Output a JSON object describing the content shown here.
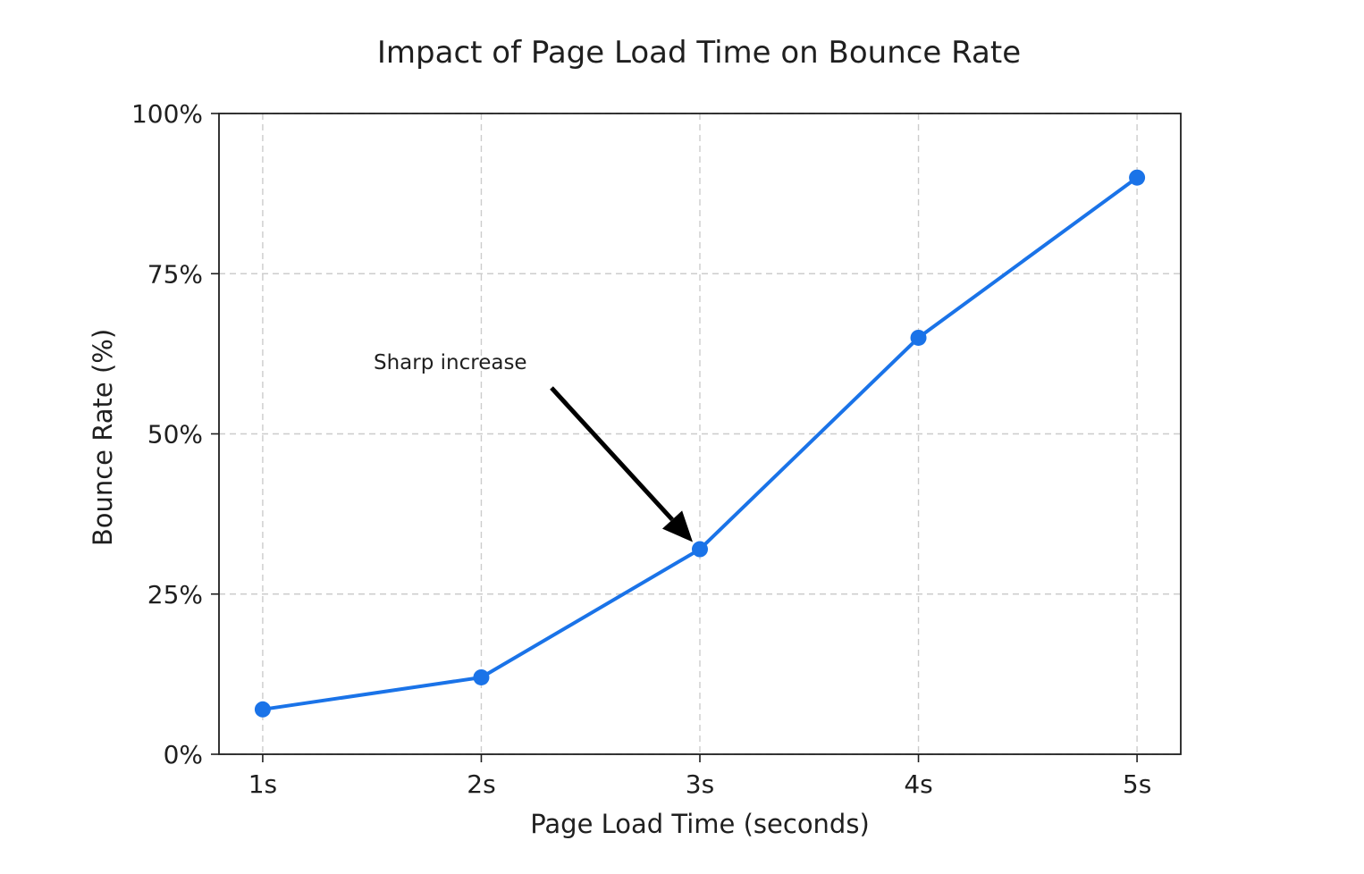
{
  "chart_data": {
    "type": "line",
    "title": "Impact of Page Load Time on Bounce Rate",
    "xlabel": "Page Load Time (seconds)",
    "ylabel": "Bounce Rate (%)",
    "categories": [
      "1s",
      "2s",
      "3s",
      "4s",
      "5s"
    ],
    "x": [
      1,
      2,
      3,
      4,
      5
    ],
    "series": [
      {
        "values": [
          7,
          12,
          32,
          65,
          90
        ],
        "color": "#1a73e8",
        "marker": "circle"
      }
    ],
    "ylim": [
      0,
      100
    ],
    "yticks": [
      0,
      25,
      50,
      75,
      100
    ],
    "ytick_labels": [
      "0%",
      "25%",
      "50%",
      "75%",
      "100%"
    ],
    "grid": true,
    "annotations": [
      {
        "text": "Sharp increase",
        "x": 3,
        "y": 32,
        "arrow": true,
        "arrow_color": "#000000"
      }
    ]
  }
}
